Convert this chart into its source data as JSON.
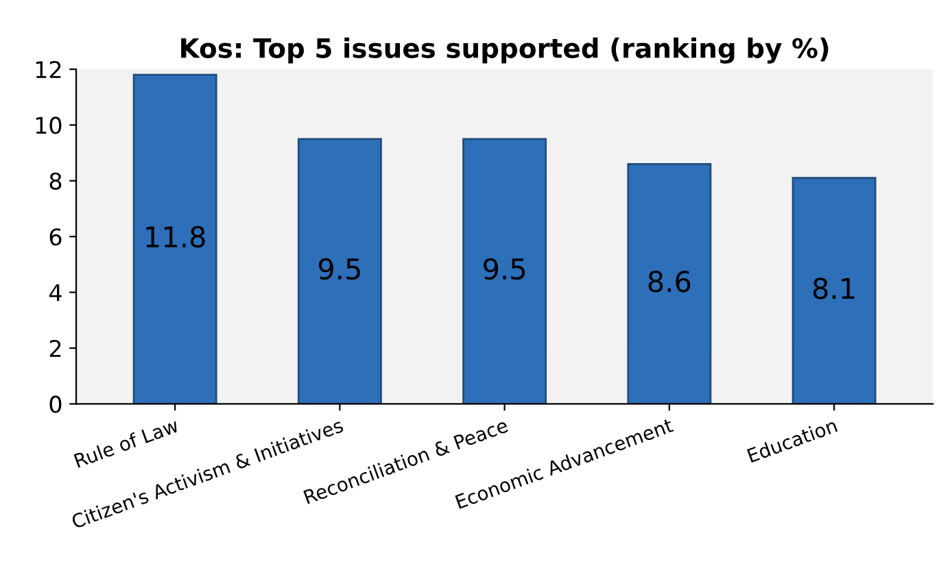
{
  "chart_data": {
    "type": "bar",
    "title": "Kos: Top 5 issues supported (ranking by %)",
    "categories": [
      "Rule of Law",
      "Citizen's Activism & Initiatives",
      "Reconciliation & Peace",
      "Economic Advancement",
      "Education"
    ],
    "values": [
      11.8,
      9.5,
      9.5,
      8.6,
      8.1
    ],
    "color": "#2e6fba",
    "ylim": [
      0,
      12
    ],
    "yticks": [
      0,
      2,
      4,
      6,
      8,
      10,
      12
    ],
    "grid": false,
    "data_labels": true
  }
}
